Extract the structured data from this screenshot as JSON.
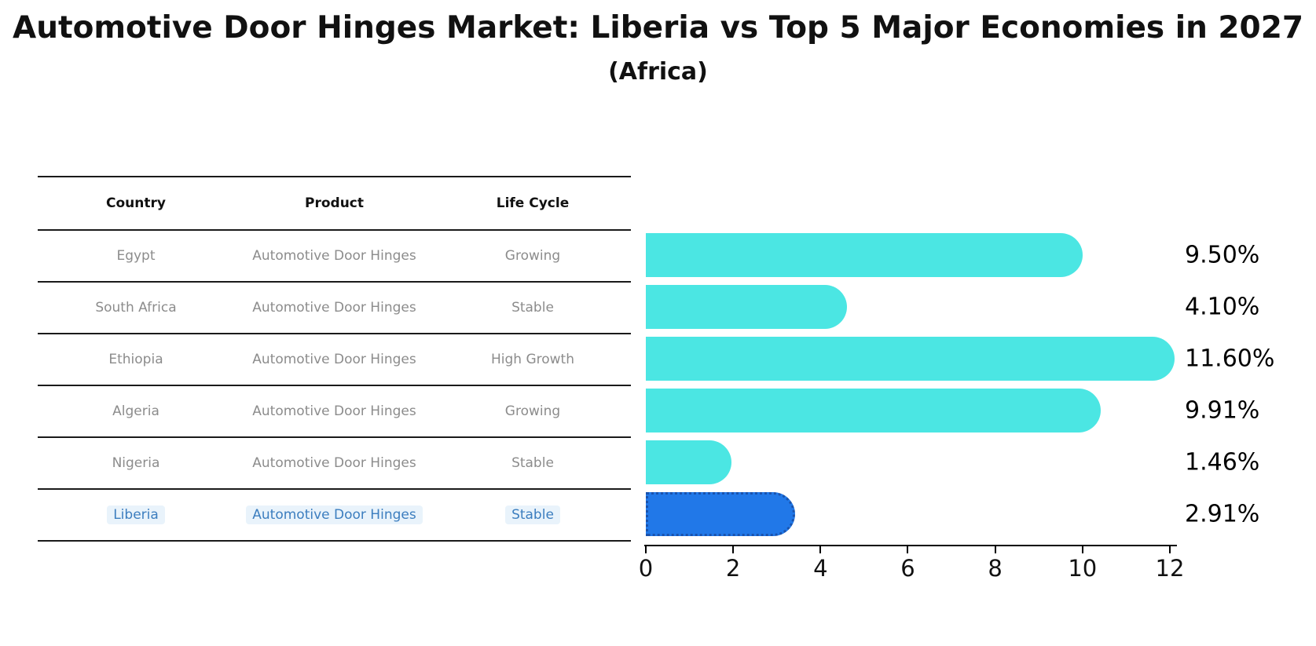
{
  "title": "Automotive Door Hinges Market: Liberia vs Top 5 Major Economies in 2027",
  "subtitle": "(Africa)",
  "colors": {
    "bar_default": "#4be6e3",
    "bar_highlight": "#2178e8",
    "bar_highlight_border": "#1a53ad",
    "row_text": "#8c8c8c",
    "highlight_text": "#3c7ebf",
    "highlight_bg": "#e9f3fb",
    "table_line": "#1a1a1a",
    "axis": "#000000"
  },
  "table": {
    "columns": [
      "Country",
      "Product",
      "Life Cycle"
    ],
    "rows": [
      {
        "country": "Egypt",
        "product": "Automotive Door Hinges",
        "life_cycle": "Growing",
        "highlight": false
      },
      {
        "country": "South Africa",
        "product": "Automotive Door Hinges",
        "life_cycle": "Stable",
        "highlight": false
      },
      {
        "country": "Ethiopia",
        "product": "Automotive Door Hinges",
        "life_cycle": "High Growth",
        "highlight": false
      },
      {
        "country": "Algeria",
        "product": "Automotive Door Hinges",
        "life_cycle": "Growing",
        "highlight": false
      },
      {
        "country": "Nigeria",
        "product": "Automotive Door Hinges",
        "life_cycle": "Stable",
        "highlight": false
      },
      {
        "country": "Liberia",
        "product": "Automotive Door Hinges",
        "life_cycle": "Stable",
        "highlight": true
      }
    ]
  },
  "chart_data": {
    "type": "bar",
    "orientation": "horizontal",
    "title": "Automotive Door Hinges Market: Liberia vs Top 5 Major Economies in 2027 (Africa)",
    "categories": [
      "Egypt",
      "South Africa",
      "Ethiopia",
      "Algeria",
      "Nigeria",
      "Liberia"
    ],
    "values": [
      9.5,
      4.1,
      11.6,
      9.91,
      1.46,
      2.91
    ],
    "value_labels": [
      "9.50%",
      "4.10%",
      "11.60%",
      "9.91%",
      "1.46%",
      "2.91%"
    ],
    "highlight_category": "Liberia",
    "xlabel": "",
    "ylabel": "",
    "xlim": [
      0,
      12
    ],
    "x_ticks": [
      0,
      2,
      4,
      6,
      8,
      10,
      12
    ],
    "grid": false,
    "legend": "none"
  }
}
